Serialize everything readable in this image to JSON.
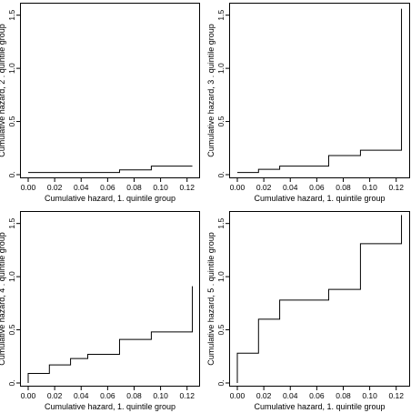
{
  "figure": {
    "background": "#ffffff",
    "line_color": "#000000"
  },
  "chart_data": [
    {
      "type": "line",
      "line_shape": "step",
      "grid": false,
      "xlabel": "Cumulative hazard, 1. quintile group",
      "ylabel": "Cumulative hazard, 2 . quintile group",
      "xlim": [
        0,
        0.125
      ],
      "ylim": [
        0,
        1.6
      ],
      "xticks": [
        0.0,
        0.02,
        0.04,
        0.06,
        0.08,
        0.1,
        0.12
      ],
      "xtick_labels": [
        "0.00",
        "0.02",
        "0.04",
        "0.06",
        "0.08",
        "0.10",
        "0.12"
      ],
      "yticks": [
        0,
        0.5,
        1,
        1.5
      ],
      "ytick_labels": [
        "0.",
        "0.5",
        "1.0",
        "1.5"
      ],
      "series": [
        {
          "x": [
            0.0,
            0.069,
            0.069,
            0.093,
            0.093,
            0.124
          ],
          "y": [
            0.02,
            0.02,
            0.045,
            0.045,
            0.08,
            0.08
          ]
        }
      ]
    },
    {
      "type": "line",
      "line_shape": "step",
      "grid": false,
      "xlabel": "Cumulative hazard, 1. quintile group",
      "ylabel": "Cumulative hazard, 3 . quintile group",
      "xlim": [
        0,
        0.125
      ],
      "ylim": [
        0,
        1.6
      ],
      "xticks": [
        0.0,
        0.02,
        0.04,
        0.06,
        0.08,
        0.1,
        0.12
      ],
      "xtick_labels": [
        "0.00",
        "0.02",
        "0.04",
        "0.06",
        "0.08",
        "0.10",
        "0.12"
      ],
      "yticks": [
        0,
        0.5,
        1,
        1.5
      ],
      "ytick_labels": [
        "0.",
        "0.5",
        "1.0",
        "1.5"
      ],
      "series": [
        {
          "x": [
            0.0,
            0.016,
            0.016,
            0.032,
            0.032,
            0.069,
            0.069,
            0.093,
            0.093,
            0.124,
            0.124
          ],
          "y": [
            0.02,
            0.02,
            0.05,
            0.05,
            0.08,
            0.08,
            0.18,
            0.18,
            0.23,
            0.23,
            1.56
          ]
        }
      ]
    },
    {
      "type": "line",
      "line_shape": "step",
      "grid": false,
      "xlabel": "Cumulative hazard, 1. quintile group",
      "ylabel": "Cumulative hazard, 4 . quintile group",
      "xlim": [
        0,
        0.125
      ],
      "ylim": [
        0,
        1.6
      ],
      "xticks": [
        0.0,
        0.02,
        0.04,
        0.06,
        0.08,
        0.1,
        0.12
      ],
      "xtick_labels": [
        "0.00",
        "0.02",
        "0.04",
        "0.06",
        "0.08",
        "0.10",
        "0.12"
      ],
      "yticks": [
        0,
        0.5,
        1,
        1.5
      ],
      "ytick_labels": [
        "0.",
        "0.5",
        "1.0",
        "1.5"
      ],
      "series": [
        {
          "x": [
            0.0,
            0.0,
            0.016,
            0.016,
            0.032,
            0.032,
            0.045,
            0.045,
            0.069,
            0.069,
            0.093,
            0.093,
            0.124,
            0.124
          ],
          "y": [
            0.0,
            0.09,
            0.09,
            0.17,
            0.17,
            0.23,
            0.23,
            0.27,
            0.27,
            0.41,
            0.41,
            0.48,
            0.48,
            0.91
          ]
        }
      ]
    },
    {
      "type": "line",
      "line_shape": "step",
      "grid": false,
      "xlabel": "Cumulative hazard, 1. quintile group",
      "ylabel": "Cumulative hazard, 5 . quintile group",
      "xlim": [
        0,
        0.125
      ],
      "ylim": [
        0,
        1.6
      ],
      "xticks": [
        0.0,
        0.02,
        0.04,
        0.06,
        0.08,
        0.1,
        0.12
      ],
      "xtick_labels": [
        "0.00",
        "0.02",
        "0.04",
        "0.06",
        "0.08",
        "0.10",
        "0.12"
      ],
      "yticks": [
        0,
        0.5,
        1,
        1.5
      ],
      "ytick_labels": [
        "0.",
        "0.5",
        "1.0",
        "1.5"
      ],
      "series": [
        {
          "x": [
            0.0,
            0.0,
            0.016,
            0.016,
            0.032,
            0.032,
            0.069,
            0.069,
            0.093,
            0.093,
            0.124,
            0.124
          ],
          "y": [
            0.0,
            0.28,
            0.28,
            0.6,
            0.6,
            0.78,
            0.78,
            0.88,
            0.88,
            1.31,
            1.31,
            1.58
          ]
        }
      ]
    }
  ]
}
